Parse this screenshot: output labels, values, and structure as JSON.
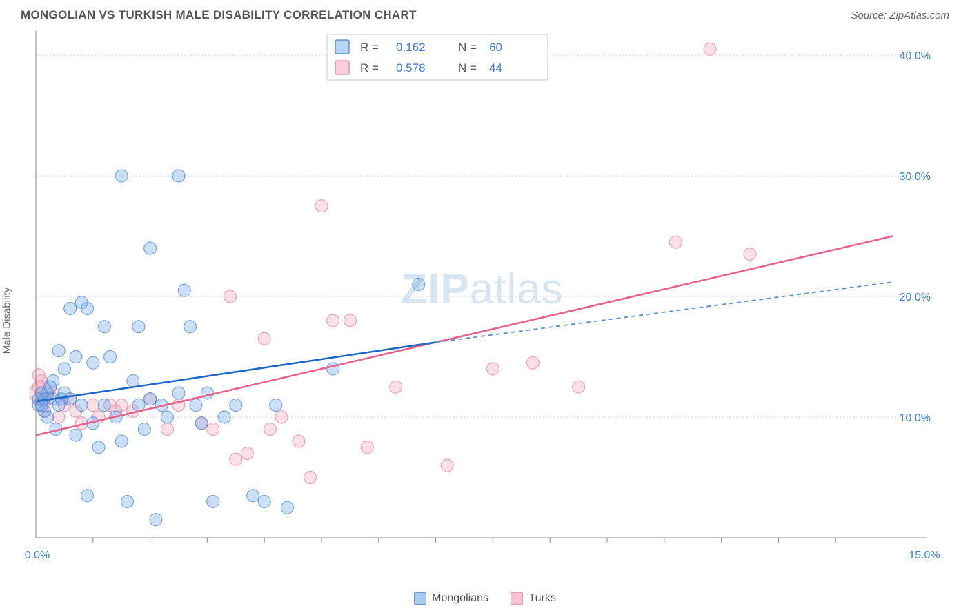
{
  "header": {
    "title": "MONGOLIAN VS TURKISH MALE DISABILITY CORRELATION CHART",
    "source": "Source: ZipAtlas.com"
  },
  "chart": {
    "type": "scatter",
    "y_axis_label": "Male Disability",
    "watermark_a": "ZIP",
    "watermark_b": "atlas",
    "background_color": "#ffffff",
    "grid_color": "#d0d0d0",
    "axis_color": "#888888",
    "marker_radius": 9,
    "marker_radius_large": 17,
    "x": {
      "min": 0.0,
      "max": 15.0,
      "ticks": [
        0.0,
        15.0
      ],
      "tick_labels": [
        "0.0%",
        "15.0%"
      ],
      "minor_tick_step": 1.0
    },
    "y": {
      "min": 0.0,
      "max": 42.0,
      "ticks": [
        10.0,
        20.0,
        30.0,
        40.0
      ],
      "tick_labels": [
        "10.0%",
        "20.0%",
        "30.0%",
        "40.0%"
      ]
    },
    "series": {
      "mongolians": {
        "label": "Mongolians",
        "color_fill": "#6aa6e8",
        "color_stroke": "#4a86d6",
        "R": "0.162",
        "N": "60",
        "points": [
          [
            0.05,
            11.5
          ],
          [
            0.05,
            11.0
          ],
          [
            0.1,
            12.0
          ],
          [
            0.1,
            11.0
          ],
          [
            0.15,
            10.5
          ],
          [
            0.15,
            11.5
          ],
          [
            0.2,
            12.0
          ],
          [
            0.2,
            10.0
          ],
          [
            0.3,
            13.0
          ],
          [
            0.3,
            11.5
          ],
          [
            0.4,
            15.5
          ],
          [
            0.4,
            11.0
          ],
          [
            0.5,
            14.0
          ],
          [
            0.5,
            12.0
          ],
          [
            0.6,
            11.5
          ],
          [
            0.7,
            15.0
          ],
          [
            0.7,
            8.5
          ],
          [
            0.8,
            19.5
          ],
          [
            0.8,
            11.0
          ],
          [
            0.9,
            19.0
          ],
          [
            0.9,
            3.5
          ],
          [
            1.0,
            14.5
          ],
          [
            1.0,
            9.5
          ],
          [
            1.2,
            17.5
          ],
          [
            1.2,
            11.0
          ],
          [
            1.3,
            15.0
          ],
          [
            1.4,
            10.0
          ],
          [
            1.5,
            30.0
          ],
          [
            1.5,
            8.0
          ],
          [
            1.6,
            3.0
          ],
          [
            1.7,
            13.0
          ],
          [
            1.8,
            11.0
          ],
          [
            1.8,
            17.5
          ],
          [
            2.0,
            24.0
          ],
          [
            2.0,
            11.5
          ],
          [
            2.1,
            1.5
          ],
          [
            2.2,
            11.0
          ],
          [
            2.3,
            10.0
          ],
          [
            2.5,
            30.0
          ],
          [
            2.5,
            12.0
          ],
          [
            2.6,
            20.5
          ],
          [
            2.7,
            17.5
          ],
          [
            2.8,
            11.0
          ],
          [
            2.9,
            9.5
          ],
          [
            3.0,
            12.0
          ],
          [
            3.1,
            3.0
          ],
          [
            3.3,
            10.0
          ],
          [
            3.5,
            11.0
          ],
          [
            3.8,
            3.5
          ],
          [
            4.0,
            3.0
          ],
          [
            4.2,
            11.0
          ],
          [
            4.4,
            2.5
          ],
          [
            5.2,
            14.0
          ],
          [
            6.7,
            21.0
          ],
          [
            0.6,
            19.0
          ],
          [
            1.1,
            7.5
          ],
          [
            0.25,
            12.5
          ],
          [
            0.35,
            9.0
          ],
          [
            1.9,
            9.0
          ],
          [
            0.45,
            11.5
          ]
        ],
        "trend": {
          "x1": 0.0,
          "y1": 11.3,
          "x2_solid": 7.0,
          "y2_solid": 16.2,
          "x2": 15.0,
          "y2": 21.2,
          "color_solid": "#1a66c8",
          "color_dash": "#5a8fd6"
        }
      },
      "turks": {
        "label": "Turks",
        "color_fill": "#f6a5bd",
        "color_stroke": "#e97fa2",
        "R": "0.578",
        "N": "44",
        "points": [
          [
            0.05,
            12.5
          ],
          [
            0.1,
            11.0
          ],
          [
            0.1,
            13.0
          ],
          [
            0.15,
            10.5
          ],
          [
            0.2,
            11.5
          ],
          [
            0.3,
            12.0
          ],
          [
            0.4,
            10.0
          ],
          [
            0.5,
            11.0
          ],
          [
            0.7,
            10.5
          ],
          [
            0.8,
            9.5
          ],
          [
            1.0,
            11.0
          ],
          [
            1.1,
            10.0
          ],
          [
            1.3,
            11.0
          ],
          [
            1.5,
            11.0
          ],
          [
            1.7,
            10.5
          ],
          [
            2.0,
            11.5
          ],
          [
            2.3,
            9.0
          ],
          [
            2.5,
            11.0
          ],
          [
            2.9,
            9.5
          ],
          [
            3.1,
            9.0
          ],
          [
            3.4,
            20.0
          ],
          [
            3.5,
            6.5
          ],
          [
            3.7,
            7.0
          ],
          [
            4.0,
            16.5
          ],
          [
            4.1,
            9.0
          ],
          [
            4.3,
            10.0
          ],
          [
            4.6,
            8.0
          ],
          [
            4.8,
            5.0
          ],
          [
            5.0,
            27.5
          ],
          [
            5.2,
            18.0
          ],
          [
            5.5,
            18.0
          ],
          [
            5.8,
            7.5
          ],
          [
            6.3,
            12.5
          ],
          [
            7.2,
            6.0
          ],
          [
            8.0,
            14.0
          ],
          [
            8.7,
            14.5
          ],
          [
            9.5,
            12.5
          ],
          [
            11.2,
            24.5
          ],
          [
            11.8,
            40.5
          ],
          [
            12.5,
            23.5
          ],
          [
            0.05,
            13.5
          ],
          [
            0.1,
            12.0
          ],
          [
            0.6,
            11.5
          ],
          [
            1.4,
            10.5
          ]
        ],
        "large_point": [
          0.1,
          12.0
        ],
        "trend": {
          "x1": 0.0,
          "y1": 8.5,
          "x2": 15.0,
          "y2": 25.0,
          "color": "#e85f88"
        }
      }
    },
    "legend_top": {
      "rows": [
        {
          "swatch": "b",
          "r_label": "R =",
          "r_val": "0.162",
          "n_label": "N =",
          "n_val": "60"
        },
        {
          "swatch": "p",
          "r_label": "R =",
          "r_val": "0.578",
          "n_label": "N =",
          "n_val": "44"
        }
      ]
    }
  }
}
